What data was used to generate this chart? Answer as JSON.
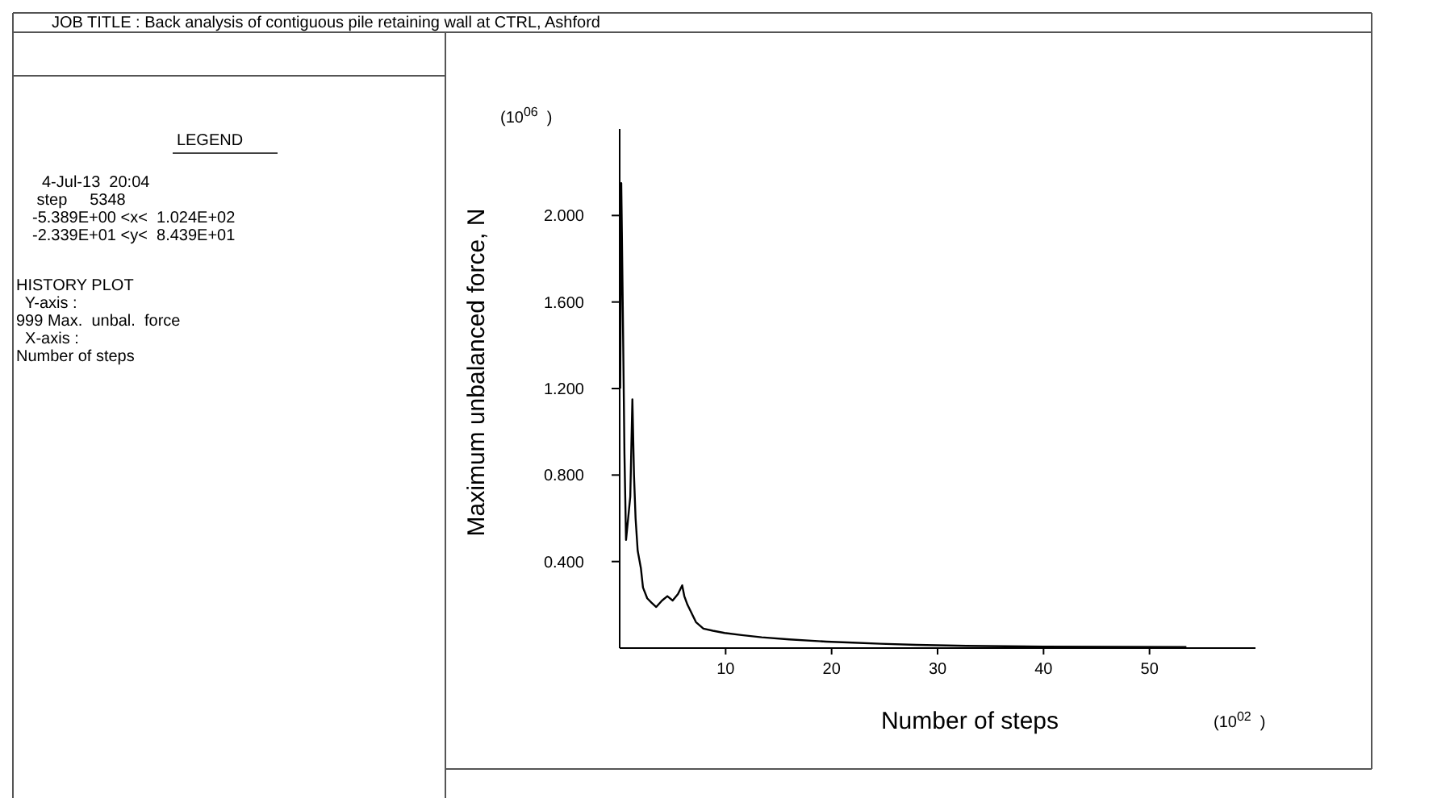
{
  "chart_data": {
    "type": "line",
    "xlabel": "Number of steps",
    "ylabel": "Maximum unbalanced force, N",
    "x": [
      0.05,
      0.15,
      0.3,
      0.45,
      0.6,
      0.8,
      1.0,
      1.2,
      1.35,
      1.5,
      1.7,
      2.0,
      2.2,
      2.6,
      3.0,
      3.45,
      4.0,
      4.5,
      5.0,
      5.5,
      5.9,
      6.1,
      6.4,
      6.8,
      7.2,
      7.9,
      8.8,
      9.9,
      11.5,
      13.4,
      16,
      19.5,
      22,
      24.6,
      28,
      32.7,
      40,
      53.48
    ],
    "series": [
      {
        "color": "#000000",
        "values": [
          1.2,
          2.15,
          1.55,
          0.9,
          0.5,
          0.6,
          0.7,
          1.15,
          0.8,
          0.6,
          0.45,
          0.37,
          0.28,
          0.23,
          0.21,
          0.19,
          0.22,
          0.24,
          0.22,
          0.25,
          0.29,
          0.24,
          0.2,
          0.16,
          0.12,
          0.09,
          0.08,
          0.07,
          0.06,
          0.05,
          0.04,
          0.03,
          0.025,
          0.02,
          0.015,
          0.01,
          0.007,
          0.005
        ]
      }
    ],
    "xlim": [
      0,
      60
    ],
    "ylim": [
      0,
      2.4
    ],
    "xticks": [
      10,
      20,
      30,
      40,
      50
    ],
    "yticks": [
      {
        "value": 0.4,
        "label": "0.400"
      },
      {
        "value": 0.8,
        "label": "0.800"
      },
      {
        "value": 1.2,
        "label": "1.200"
      },
      {
        "value": 1.6,
        "label": "1.600"
      },
      {
        "value": 2.0,
        "label": "2.000"
      }
    ],
    "grid": false,
    "annotations": [
      "JOB TITLE : Back analysis of contiguous pile retaining wall at CTRL, Ashford",
      "LEGEND",
      "4-Jul-13  20:04",
      " step     5348",
      "-5.389E+00 <x<  1.024E+02",
      "-2.339E+01 <y<  8.439E+01",
      "HISTORY PLOT",
      "  Y-axis :",
      "999 Max.  unbal.  force",
      "  X-axis :",
      "Number of steps",
      "(10$^{06}$  )",
      "(10$^{02}$  )"
    ]
  }
}
